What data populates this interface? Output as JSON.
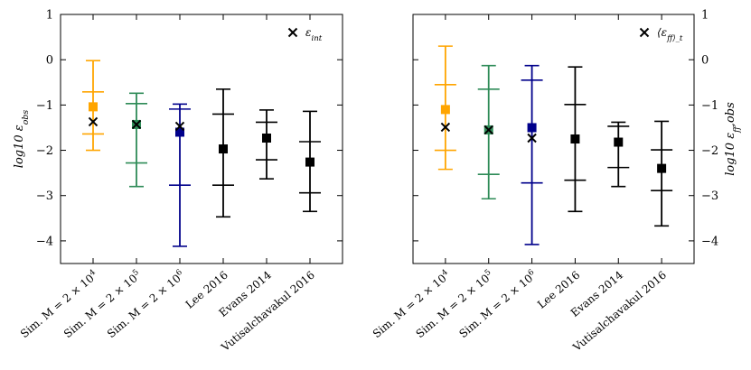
{
  "chart_data": [
    {
      "type": "errorbar",
      "ylabel": "log10 ε_obs",
      "ylim": [
        -4.5,
        1
      ],
      "yticks": [
        1,
        0,
        -1,
        -2,
        -3,
        -4
      ],
      "ytick_labels": [
        "1",
        "0",
        "−1",
        "−2",
        "−3",
        "−4"
      ],
      "ytick_side": "left",
      "legend": {
        "marker": "×",
        "label": "ε_int",
        "position": "top-right"
      },
      "categories": [
        "Sim. M = 2 × 10^4",
        "Sim. M = 2 × 10^5",
        "Sim. M = 2 × 10^6",
        "Lee 2016",
        "Evans 2014",
        "Vutisalchavakul 2016"
      ],
      "points": [
        {
          "category": "Sim. M = 2 × 10^4",
          "color": "#FFA500",
          "median": -1.04,
          "inner": [
            -1.64,
            -0.71
          ],
          "outer": [
            -2.0,
            -0.02
          ],
          "intrinsic": -1.37
        },
        {
          "category": "Sim. M = 2 × 10^5",
          "color": "#2E8B57",
          "median": -1.43,
          "inner": [
            -2.28,
            -0.97
          ],
          "outer": [
            -2.8,
            -0.74
          ],
          "intrinsic": -1.43
        },
        {
          "category": "Sim. M = 2 × 10^6",
          "color": "#00008B",
          "median": -1.6,
          "inner": [
            -2.77,
            -1.09
          ],
          "outer": [
            -4.12,
            -0.98
          ],
          "intrinsic": -1.47
        },
        {
          "category": "Lee 2016",
          "color": "#000000",
          "median": -1.97,
          "inner": [
            -2.77,
            -1.2
          ],
          "outer": [
            -3.47,
            -0.65
          ],
          "intrinsic": null
        },
        {
          "category": "Evans 2014",
          "color": "#000000",
          "median": -1.73,
          "inner": [
            -2.21,
            -1.38
          ],
          "outer": [
            -2.63,
            -1.11
          ],
          "intrinsic": null
        },
        {
          "category": "Vutisalchavakul 2016",
          "color": "#000000",
          "median": -2.26,
          "inner": [
            -2.94,
            -1.81
          ],
          "outer": [
            -3.35,
            -1.14
          ],
          "intrinsic": null
        }
      ]
    },
    {
      "type": "errorbar",
      "ylabel": "log10 ε_ff,obs",
      "ylim": [
        -4.5,
        1
      ],
      "yticks": [
        1,
        0,
        -1,
        -2,
        -3,
        -4
      ],
      "ytick_labels": [
        "1",
        "0",
        "−1",
        "−2",
        "−3",
        "−4"
      ],
      "ytick_side": "right",
      "legend": {
        "marker": "×",
        "label": "⟨ε_ff⟩_t",
        "position": "top-right"
      },
      "categories": [
        "Sim. M = 2 × 10^4",
        "Sim. M = 2 × 10^5",
        "Sim. M = 2 × 10^6",
        "Lee 2016",
        "Evans 2014",
        "Vutisalchavakul 2016"
      ],
      "points": [
        {
          "category": "Sim. M = 2 × 10^4",
          "color": "#FFA500",
          "median": -1.1,
          "inner": [
            -2.0,
            -0.55
          ],
          "outer": [
            -2.42,
            0.3
          ],
          "intrinsic": -1.49
        },
        {
          "category": "Sim. M = 2 × 10^5",
          "color": "#2E8B57",
          "median": -1.55,
          "inner": [
            -2.53,
            -0.65
          ],
          "outer": [
            -3.07,
            -0.13
          ],
          "intrinsic": -1.55
        },
        {
          "category": "Sim. M = 2 × 10^6",
          "color": "#00008B",
          "median": -1.5,
          "inner": [
            -2.72,
            -0.45
          ],
          "outer": [
            -4.08,
            -0.13
          ],
          "intrinsic": -1.73
        },
        {
          "category": "Lee 2016",
          "color": "#000000",
          "median": -1.75,
          "inner": [
            -2.66,
            -0.99
          ],
          "outer": [
            -3.35,
            -0.16
          ],
          "intrinsic": null
        },
        {
          "category": "Evans 2014",
          "color": "#000000",
          "median": -1.82,
          "inner": [
            -2.38,
            -1.47
          ],
          "outer": [
            -2.8,
            -1.38
          ],
          "intrinsic": null
        },
        {
          "category": "Vutisalchavakul 2016",
          "color": "#000000",
          "median": -2.4,
          "inner": [
            -2.89,
            -1.99
          ],
          "outer": [
            -3.67,
            -1.36
          ],
          "intrinsic": null
        }
      ]
    }
  ]
}
